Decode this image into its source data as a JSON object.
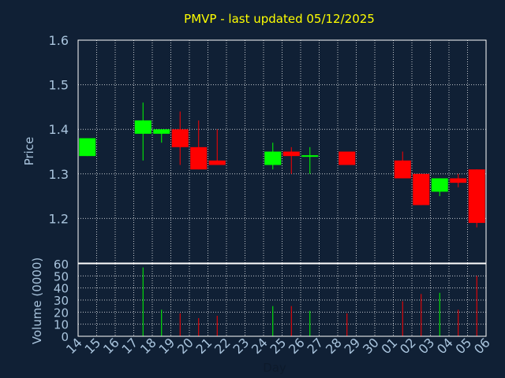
{
  "chart_data": {
    "title": "PMVP - last updated 05/12/2025",
    "price": {
      "type": "candlestick",
      "ylabel": "Price",
      "ylim": [
        1.1,
        1.6
      ],
      "yticks": [
        "1.2",
        "1.3",
        "1.4",
        "1.5",
        "1.6"
      ],
      "candles": [
        {
          "x": "14",
          "open": 1.34,
          "close": 1.38,
          "high": 1.38,
          "low": 1.34
        },
        {
          "x": "17",
          "open": 1.39,
          "close": 1.42,
          "high": 1.46,
          "low": 1.33
        },
        {
          "x": "18",
          "open": 1.39,
          "close": 1.4,
          "high": 1.4,
          "low": 1.37
        },
        {
          "x": "19",
          "open": 1.4,
          "close": 1.36,
          "high": 1.44,
          "low": 1.32
        },
        {
          "x": "20",
          "open": 1.36,
          "close": 1.31,
          "high": 1.42,
          "low": 1.31
        },
        {
          "x": "21",
          "open": 1.33,
          "close": 1.32,
          "high": 1.4,
          "low": 1.32
        },
        {
          "x": "24",
          "open": 1.32,
          "close": 1.35,
          "high": 1.37,
          "low": 1.31
        },
        {
          "x": "25",
          "open": 1.35,
          "close": 1.34,
          "high": 1.36,
          "low": 1.3
        },
        {
          "x": "26",
          "open": 1.34,
          "close": 1.34,
          "high": 1.36,
          "low": 1.3
        },
        {
          "x": "28",
          "open": 1.35,
          "close": 1.32,
          "high": 1.35,
          "low": 1.32
        },
        {
          "x": "01",
          "open": 1.33,
          "close": 1.29,
          "high": 1.35,
          "low": 1.29
        },
        {
          "x": "02",
          "open": 1.3,
          "close": 1.23,
          "high": 1.3,
          "low": 1.23
        },
        {
          "x": "03",
          "open": 1.26,
          "close": 1.29,
          "high": 1.29,
          "low": 1.25
        },
        {
          "x": "04",
          "open": 1.29,
          "close": 1.28,
          "high": 1.3,
          "low": 1.27
        },
        {
          "x": "05",
          "open": 1.31,
          "close": 1.19,
          "high": 1.31,
          "low": 1.18
        }
      ]
    },
    "volume": {
      "type": "bar",
      "ylabel": "Volume (0000)",
      "ylim": [
        0,
        60
      ],
      "yticks": [
        "0",
        "10",
        "20",
        "30",
        "40",
        "50",
        "60"
      ],
      "bars": [
        {
          "x": "17",
          "value": 57,
          "direction": "up"
        },
        {
          "x": "18",
          "value": 22,
          "direction": "up"
        },
        {
          "x": "19",
          "value": 19,
          "direction": "down"
        },
        {
          "x": "20",
          "value": 15,
          "direction": "down"
        },
        {
          "x": "21",
          "value": 17,
          "direction": "down"
        },
        {
          "x": "24",
          "value": 25,
          "direction": "up"
        },
        {
          "x": "25",
          "value": 25,
          "direction": "down"
        },
        {
          "x": "26",
          "value": 21,
          "direction": "up"
        },
        {
          "x": "28",
          "value": 19,
          "direction": "down"
        },
        {
          "x": "01",
          "value": 29,
          "direction": "down"
        },
        {
          "x": "02",
          "value": 35,
          "direction": "down"
        },
        {
          "x": "03",
          "value": 36,
          "direction": "up"
        },
        {
          "x": "04",
          "value": 22,
          "direction": "down"
        },
        {
          "x": "05",
          "value": 50,
          "direction": "down"
        }
      ]
    },
    "x_ticks": [
      "14",
      "15",
      "16",
      "17",
      "18",
      "19",
      "20",
      "21",
      "22",
      "23",
      "24",
      "25",
      "26",
      "27",
      "28",
      "29",
      "30",
      "01",
      "02",
      "03",
      "04",
      "05",
      "06"
    ],
    "xlabel": "Day",
    "grid": true,
    "colors": {
      "background": "#102035",
      "plot_border": "#ffffff",
      "grid": "#ffffff",
      "up": "#00ff00",
      "down": "#ff0000",
      "title": "#ffff00",
      "tick_text": "#a9c4dd",
      "xlabel_text": "#0d1a2b"
    }
  }
}
